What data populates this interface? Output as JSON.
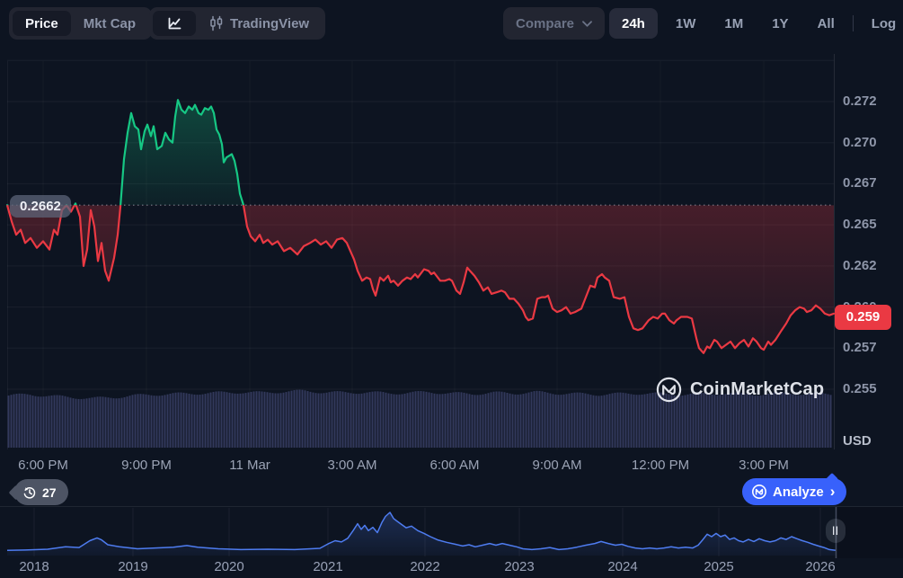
{
  "toolbar": {
    "price_label": "Price",
    "mktcap_label": "Mkt Cap",
    "tradingview_label": "TradingView",
    "compare_label": "Compare",
    "ranges": [
      "24h",
      "1W",
      "1M",
      "1Y",
      "All"
    ],
    "active_range": "24h",
    "log_label": "Log"
  },
  "chart": {
    "baseline_label": "0.2662",
    "current_price_label": "0.259"
  },
  "watermark_label": "CoinMarketCap",
  "history_badge": {
    "count": "27"
  },
  "analyze": {
    "label": "Analyze",
    "chevron": "›"
  },
  "minimap_ui": {
    "handle_label": "||"
  },
  "colors": {
    "background": "#0d1421",
    "green": "#16c784",
    "red": "#ea3943",
    "blue": "#3861fb",
    "volume": "#363d63",
    "minimap_line": "#4e7cf0",
    "axis_text": "#8e96a9"
  },
  "chart_data": {
    "type": "line",
    "subtype": "baseline-area-with-volume",
    "unit": "USD",
    "baseline": 0.2662,
    "current_price": 0.2594,
    "y_axis": {
      "min": 0.255,
      "max": 0.2725,
      "grid_top_extra": 0.275,
      "ticks": [
        {
          "v": 0.2725,
          "label": "0.272"
        },
        {
          "v": 0.27,
          "label": "0.270"
        },
        {
          "v": 0.2675,
          "label": "0.267"
        },
        {
          "v": 0.265,
          "label": "0.265"
        },
        {
          "v": 0.2625,
          "label": "0.262"
        },
        {
          "v": 0.26,
          "label": "0.260"
        },
        {
          "v": 0.2575,
          "label": "0.257"
        },
        {
          "v": 0.255,
          "label": "0.255"
        }
      ]
    },
    "x_axis": {
      "ticks": [
        {
          "pos": 40,
          "label": "6:00 PM"
        },
        {
          "pos": 155,
          "label": "9:00 PM"
        },
        {
          "pos": 270,
          "label": "11 Mar"
        },
        {
          "pos": 384,
          "label": "3:00 AM"
        },
        {
          "pos": 498,
          "label": "6:00 AM"
        },
        {
          "pos": 612,
          "label": "9:00 AM"
        },
        {
          "pos": 727,
          "label": "12:00 PM"
        },
        {
          "pos": 842,
          "label": "3:00 PM"
        }
      ]
    },
    "series": [
      [
        0,
        0.2662
      ],
      [
        5,
        0.2652
      ],
      [
        10,
        0.2644
      ],
      [
        15,
        0.2647
      ],
      [
        20,
        0.2639
      ],
      [
        26,
        0.2642
      ],
      [
        33,
        0.2636
      ],
      [
        40,
        0.264
      ],
      [
        47,
        0.2635
      ],
      [
        52,
        0.2647
      ],
      [
        56,
        0.2644
      ],
      [
        61,
        0.2659
      ],
      [
        66,
        0.2662
      ],
      [
        71,
        0.2658
      ],
      [
        76,
        0.2663
      ],
      [
        81,
        0.2655
      ],
      [
        85,
        0.2625
      ],
      [
        89,
        0.2635
      ],
      [
        93,
        0.2659
      ],
      [
        97,
        0.2649
      ],
      [
        101,
        0.2628
      ],
      [
        105,
        0.2639
      ],
      [
        109,
        0.2622
      ],
      [
        113,
        0.2616
      ],
      [
        119,
        0.263
      ],
      [
        123,
        0.2644
      ],
      [
        126,
        0.2661
      ],
      [
        130,
        0.269
      ],
      [
        134,
        0.2706
      ],
      [
        138,
        0.2718
      ],
      [
        142,
        0.271
      ],
      [
        146,
        0.2708
      ],
      [
        149,
        0.2696
      ],
      [
        153,
        0.2707
      ],
      [
        156,
        0.2711
      ],
      [
        160,
        0.2704
      ],
      [
        163,
        0.271
      ],
      [
        167,
        0.2696
      ],
      [
        172,
        0.2698
      ],
      [
        176,
        0.2706
      ],
      [
        180,
        0.2702
      ],
      [
        184,
        0.27
      ],
      [
        187,
        0.2716
      ],
      [
        190,
        0.2726
      ],
      [
        194,
        0.272
      ],
      [
        198,
        0.2718
      ],
      [
        202,
        0.2722
      ],
      [
        206,
        0.272
      ],
      [
        209,
        0.2723
      ],
      [
        213,
        0.2718
      ],
      [
        216,
        0.2717
      ],
      [
        220,
        0.2721
      ],
      [
        224,
        0.272
      ],
      [
        227,
        0.2722
      ],
      [
        230,
        0.2718
      ],
      [
        233,
        0.2708
      ],
      [
        236,
        0.2705
      ],
      [
        239,
        0.2699
      ],
      [
        241,
        0.2688
      ],
      [
        244,
        0.2691
      ],
      [
        247,
        0.2692
      ],
      [
        250,
        0.2693
      ],
      [
        253,
        0.2689
      ],
      [
        256,
        0.2681
      ],
      [
        259,
        0.2669
      ],
      [
        263,
        0.2662
      ],
      [
        267,
        0.2649
      ],
      [
        271,
        0.2643
      ],
      [
        276,
        0.264
      ],
      [
        281,
        0.2644
      ],
      [
        285,
        0.2639
      ],
      [
        290,
        0.2641
      ],
      [
        295,
        0.2638
      ],
      [
        301,
        0.264
      ],
      [
        308,
        0.2634
      ],
      [
        315,
        0.2636
      ],
      [
        323,
        0.2632
      ],
      [
        330,
        0.2637
      ],
      [
        337,
        0.2639
      ],
      [
        343,
        0.2641
      ],
      [
        349,
        0.2638
      ],
      [
        355,
        0.264
      ],
      [
        361,
        0.2636
      ],
      [
        367,
        0.2641
      ],
      [
        373,
        0.2642
      ],
      [
        378,
        0.2639
      ],
      [
        382,
        0.2634
      ],
      [
        386,
        0.2629
      ],
      [
        390,
        0.2622
      ],
      [
        395,
        0.2616
      ],
      [
        400,
        0.2618
      ],
      [
        404,
        0.2617
      ],
      [
        407,
        0.2611
      ],
      [
        410,
        0.2607
      ],
      [
        415,
        0.2618
      ],
      [
        419,
        0.2616
      ],
      [
        424,
        0.2619
      ],
      [
        427,
        0.2615
      ],
      [
        430,
        0.2616
      ],
      [
        435,
        0.2613
      ],
      [
        440,
        0.2616
      ],
      [
        445,
        0.2618
      ],
      [
        449,
        0.2617
      ],
      [
        454,
        0.262
      ],
      [
        457,
        0.2618
      ],
      [
        464,
        0.2623
      ],
      [
        469,
        0.2622
      ],
      [
        472,
        0.262
      ],
      [
        475,
        0.2621
      ],
      [
        482,
        0.2616
      ],
      [
        487,
        0.2616
      ],
      [
        492,
        0.2617
      ],
      [
        495,
        0.2616
      ],
      [
        500,
        0.261
      ],
      [
        504,
        0.2608
      ],
      [
        508,
        0.2615
      ],
      [
        512,
        0.2624
      ],
      [
        515,
        0.2622
      ],
      [
        520,
        0.2619
      ],
      [
        525,
        0.2615
      ],
      [
        530,
        0.261
      ],
      [
        535,
        0.2612
      ],
      [
        539,
        0.2608
      ],
      [
        545,
        0.2609
      ],
      [
        550,
        0.261
      ],
      [
        554,
        0.2609
      ],
      [
        559,
        0.2605
      ],
      [
        564,
        0.2605
      ],
      [
        569,
        0.2602
      ],
      [
        574,
        0.2598
      ],
      [
        577,
        0.2594
      ],
      [
        580,
        0.2592
      ],
      [
        585,
        0.2593
      ],
      [
        590,
        0.2605
      ],
      [
        595,
        0.2606
      ],
      [
        599,
        0.2606
      ],
      [
        602,
        0.2607
      ],
      [
        607,
        0.2599
      ],
      [
        612,
        0.2597
      ],
      [
        617,
        0.2598
      ],
      [
        622,
        0.26
      ],
      [
        627,
        0.2596
      ],
      [
        632,
        0.2597
      ],
      [
        639,
        0.2599
      ],
      [
        644,
        0.2606
      ],
      [
        649,
        0.2613
      ],
      [
        654,
        0.2612
      ],
      [
        657,
        0.2618
      ],
      [
        662,
        0.262
      ],
      [
        665,
        0.2618
      ],
      [
        670,
        0.2616
      ],
      [
        675,
        0.2606
      ],
      [
        682,
        0.2605
      ],
      [
        687,
        0.2606
      ],
      [
        692,
        0.2594
      ],
      [
        697,
        0.2587
      ],
      [
        702,
        0.2586
      ],
      [
        707,
        0.2587
      ],
      [
        714,
        0.2592
      ],
      [
        719,
        0.2594
      ],
      [
        724,
        0.2593
      ],
      [
        729,
        0.2596
      ],
      [
        732,
        0.2596
      ],
      [
        737,
        0.2592
      ],
      [
        742,
        0.259
      ],
      [
        745,
        0.2592
      ],
      [
        750,
        0.2594
      ],
      [
        757,
        0.2594
      ],
      [
        762,
        0.2593
      ],
      [
        767,
        0.2581
      ],
      [
        770,
        0.2575
      ],
      [
        775,
        0.2572
      ],
      [
        779,
        0.2576
      ],
      [
        782,
        0.2575
      ],
      [
        787,
        0.258
      ],
      [
        790,
        0.2579
      ],
      [
        795,
        0.2575
      ],
      [
        800,
        0.2577
      ],
      [
        805,
        0.2579
      ],
      [
        810,
        0.2575
      ],
      [
        815,
        0.2578
      ],
      [
        820,
        0.258
      ],
      [
        825,
        0.2576
      ],
      [
        830,
        0.2581
      ],
      [
        834,
        0.2579
      ],
      [
        839,
        0.2575
      ],
      [
        842,
        0.2574
      ],
      [
        847,
        0.2579
      ],
      [
        850,
        0.2577
      ],
      [
        855,
        0.258
      ],
      [
        862,
        0.2586
      ],
      [
        867,
        0.259
      ],
      [
        872,
        0.2595
      ],
      [
        877,
        0.2598
      ],
      [
        882,
        0.26
      ],
      [
        887,
        0.2599
      ],
      [
        890,
        0.2597
      ],
      [
        895,
        0.2598
      ],
      [
        900,
        0.2601
      ],
      [
        905,
        0.2599
      ],
      [
        910,
        0.2596
      ],
      [
        915,
        0.2595
      ],
      [
        920,
        0.2596
      ]
    ],
    "volume_profile": [
      0.92,
      0.94,
      0.91,
      0.89,
      0.87,
      0.89,
      0.92,
      0.94,
      0.95,
      0.96,
      0.97,
      0.98,
      0.97,
      0.99,
      1,
      0.98,
      0.97,
      0.98,
      0.96,
      0.97,
      0.98,
      0.96,
      0.95,
      0.97,
      0.96,
      0.98,
      0.96,
      0.95,
      0.94,
      0.95,
      0.96,
      0.95,
      0.94,
      0.95,
      0.96,
      0.94,
      0.95,
      0.96,
      0.95,
      0.94
    ],
    "minimap": {
      "series": [
        [
          0,
          0.06
        ],
        [
          20,
          0.07
        ],
        [
          45,
          0.09
        ],
        [
          65,
          0.15
        ],
        [
          80,
          0.13
        ],
        [
          92,
          0.3
        ],
        [
          100,
          0.37
        ],
        [
          105,
          0.32
        ],
        [
          112,
          0.2
        ],
        [
          125,
          0.15
        ],
        [
          145,
          0.1
        ],
        [
          165,
          0.12
        ],
        [
          185,
          0.14
        ],
        [
          200,
          0.18
        ],
        [
          212,
          0.14
        ],
        [
          235,
          0.1
        ],
        [
          260,
          0.08
        ],
        [
          290,
          0.09
        ],
        [
          320,
          0.08
        ],
        [
          348,
          0.11
        ],
        [
          357,
          0.22
        ],
        [
          365,
          0.3
        ],
        [
          372,
          0.27
        ],
        [
          379,
          0.36
        ],
        [
          385,
          0.55
        ],
        [
          390,
          0.72
        ],
        [
          394,
          0.58
        ],
        [
          398,
          0.68
        ],
        [
          402,
          0.55
        ],
        [
          407,
          0.63
        ],
        [
          412,
          0.5
        ],
        [
          417,
          0.75
        ],
        [
          421,
          0.9
        ],
        [
          426,
          1.0
        ],
        [
          430,
          0.85
        ],
        [
          434,
          0.78
        ],
        [
          439,
          0.7
        ],
        [
          444,
          0.62
        ],
        [
          450,
          0.66
        ],
        [
          457,
          0.55
        ],
        [
          464,
          0.48
        ],
        [
          471,
          0.4
        ],
        [
          479,
          0.32
        ],
        [
          489,
          0.26
        ],
        [
          499,
          0.21
        ],
        [
          507,
          0.17
        ],
        [
          514,
          0.2
        ],
        [
          521,
          0.15
        ],
        [
          529,
          0.19
        ],
        [
          537,
          0.23
        ],
        [
          544,
          0.19
        ],
        [
          551,
          0.23
        ],
        [
          559,
          0.19
        ],
        [
          567,
          0.15
        ],
        [
          574,
          0.1
        ],
        [
          584,
          0.08
        ],
        [
          594,
          0.1
        ],
        [
          604,
          0.13
        ],
        [
          614,
          0.08
        ],
        [
          624,
          0.1
        ],
        [
          634,
          0.14
        ],
        [
          644,
          0.19
        ],
        [
          654,
          0.23
        ],
        [
          661,
          0.28
        ],
        [
          669,
          0.23
        ],
        [
          677,
          0.19
        ],
        [
          684,
          0.21
        ],
        [
          691,
          0.16
        ],
        [
          699,
          0.12
        ],
        [
          707,
          0.1
        ],
        [
          715,
          0.12
        ],
        [
          723,
          0.1
        ],
        [
          731,
          0.12
        ],
        [
          739,
          0.15
        ],
        [
          747,
          0.12
        ],
        [
          755,
          0.14
        ],
        [
          763,
          0.12
        ],
        [
          769,
          0.19
        ],
        [
          774,
          0.32
        ],
        [
          779,
          0.46
        ],
        [
          784,
          0.4
        ],
        [
          789,
          0.48
        ],
        [
          794,
          0.4
        ],
        [
          799,
          0.44
        ],
        [
          804,
          0.33
        ],
        [
          809,
          0.37
        ],
        [
          814,
          0.3
        ],
        [
          819,
          0.27
        ],
        [
          825,
          0.33
        ],
        [
          831,
          0.28
        ],
        [
          837,
          0.35
        ],
        [
          843,
          0.3
        ],
        [
          849,
          0.27
        ],
        [
          855,
          0.3
        ],
        [
          861,
          0.37
        ],
        [
          867,
          0.33
        ],
        [
          873,
          0.4
        ],
        [
          879,
          0.35
        ],
        [
          885,
          0.3
        ],
        [
          891,
          0.26
        ],
        [
          897,
          0.21
        ],
        [
          903,
          0.17
        ],
        [
          909,
          0.13
        ],
        [
          915,
          0.08
        ],
        [
          922,
          0.06
        ]
      ],
      "years": [
        {
          "pos": 38,
          "label": "2018"
        },
        {
          "pos": 148,
          "label": "2019"
        },
        {
          "pos": 255,
          "label": "2020"
        },
        {
          "pos": 365,
          "label": "2021"
        },
        {
          "pos": 473,
          "label": "2022"
        },
        {
          "pos": 578,
          "label": "2023"
        },
        {
          "pos": 693,
          "label": "2024"
        },
        {
          "pos": 800,
          "label": "2025"
        },
        {
          "pos": 913,
          "label": "2026"
        }
      ],
      "brush_end": 930
    }
  }
}
